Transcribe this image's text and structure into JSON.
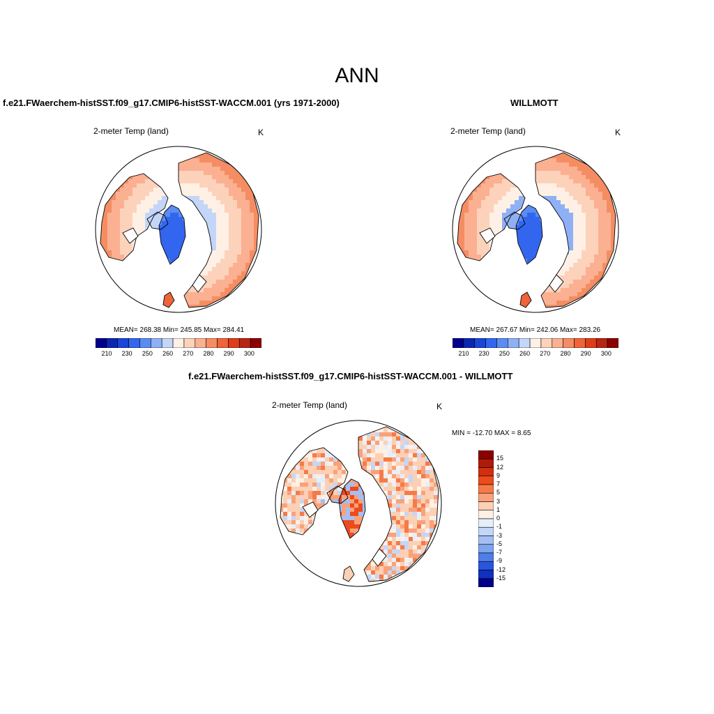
{
  "main_title": "ANN",
  "panels": [
    {
      "title": "f.e21.FWaerchem-histSST.f09_g17.CMIP6-histSST-WACCM.001 (yrs 1971-2000)",
      "variable": "2-meter Temp (land)",
      "units": "K",
      "stats": "MEAN= 268.38  Min= 245.85  Max= 284.41",
      "colorbar": {
        "colors": [
          "#00008b",
          "#0b26b0",
          "#1a45d8",
          "#3366ee",
          "#5a8cf2",
          "#8fb0f5",
          "#c4d6f8",
          "#fff0e6",
          "#fdd2bb",
          "#fbb091",
          "#f58d63",
          "#ef6439",
          "#de3c1a",
          "#b82514",
          "#8b0000"
        ],
        "labels": [
          "210",
          "230",
          "250",
          "260",
          "270",
          "280",
          "290",
          "300"
        ]
      }
    },
    {
      "title": "WILLMOTT",
      "variable": "2-meter Temp (land)",
      "units": "K",
      "stats": "MEAN= 267.67  Min= 242.06  Max= 283.26",
      "colorbar": {
        "colors": [
          "#00008b",
          "#0b26b0",
          "#1a45d8",
          "#3366ee",
          "#5a8cf2",
          "#8fb0f5",
          "#c4d6f8",
          "#fff0e6",
          "#fdd2bb",
          "#fbb091",
          "#f58d63",
          "#ef6439",
          "#de3c1a",
          "#b82514",
          "#8b0000"
        ],
        "labels": [
          "210",
          "230",
          "250",
          "260",
          "270",
          "280",
          "290",
          "300"
        ]
      }
    },
    {
      "title": "f.e21.FWaerchem-histSST.f09_g17.CMIP6-histSST-WACCM.001 - WILLMOTT",
      "variable": "2-meter Temp (land)",
      "units": "K",
      "stats": "MIN = -12.70 MAX =   8.65",
      "colorbar": {
        "colors": [
          "#8b0000",
          "#b01a08",
          "#d22f0f",
          "#ee4a1c",
          "#f67a48",
          "#f9a27a",
          "#fcd0b4",
          "#fff0e6",
          "#e6eefb",
          "#c4d6f8",
          "#a3bff5",
          "#7da5f0",
          "#4f7ee8",
          "#2a55dc",
          "#1030c0",
          "#00008b"
        ],
        "labels": [
          "15",
          "12",
          "9",
          "7",
          "5",
          "3",
          "1",
          "0",
          "-1",
          "-3",
          "-5",
          "-7",
          "-9",
          "-12",
          "-15"
        ]
      }
    }
  ]
}
